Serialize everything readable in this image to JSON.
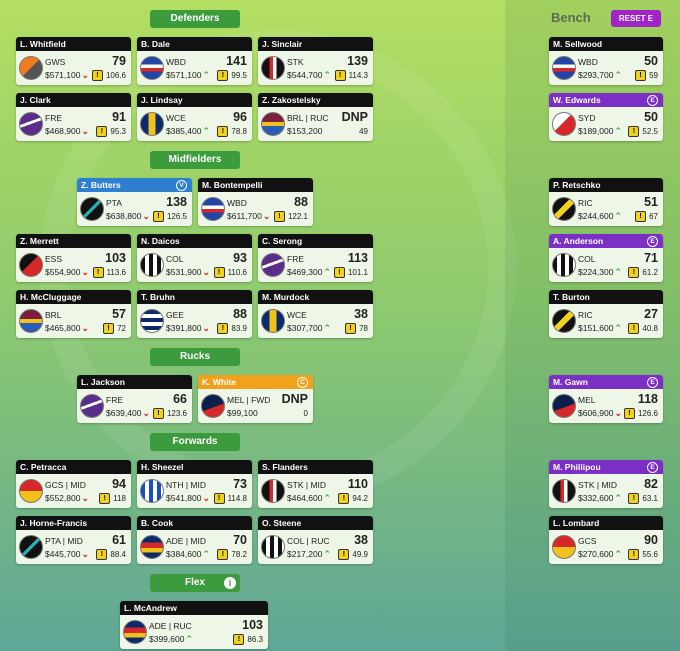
{
  "header": {
    "bench_title": "Bench",
    "reset_button": "RESET E"
  },
  "sections": [
    {
      "title": "Defenders",
      "players": [
        {
          "name": "L. Whitfield",
          "team": "GWS",
          "score": 79,
          "price": "$571,100",
          "trend": "down",
          "average": 106.6
        },
        {
          "name": "B. Dale",
          "team": "WBD",
          "score": 141,
          "price": "$571,100",
          "trend": "up",
          "average": 99.5
        },
        {
          "name": "J. Sinclair",
          "team": "STK",
          "score": 139,
          "price": "$544,700",
          "trend": "up",
          "average": 114.3
        },
        {
          "name": "J. Clark",
          "team": "FRE",
          "score": 91,
          "price": "$468,900",
          "trend": "down",
          "average": 95.3
        },
        {
          "name": "J. Lindsay",
          "team": "WCE",
          "score": 96,
          "price": "$385,400",
          "trend": "up",
          "average": 78.8
        },
        {
          "name": "Z. Zakostelsky",
          "team": "BRL | RUC",
          "score": "DNP",
          "price": "$153,200",
          "average": 49
        }
      ]
    },
    {
      "title": "Midfielders",
      "players": [
        {
          "name": "Z. Butters",
          "team": "PTA",
          "score": 138,
          "price": "$638,800",
          "trend": "down",
          "average": 126.5,
          "badge": "V",
          "header_color": "#2f7fd0"
        },
        {
          "name": "M. Bontempelli",
          "team": "WBD",
          "score": 88,
          "price": "$611,700",
          "trend": "down",
          "average": 122.1
        },
        {
          "name": "Z. Merrett",
          "team": "ESS",
          "score": 103,
          "price": "$554,900",
          "trend": "down",
          "average": 113.6
        },
        {
          "name": "N. Daicos",
          "team": "COL",
          "score": 93,
          "price": "$531,900",
          "trend": "down",
          "average": 110.6
        },
        {
          "name": "C. Serong",
          "team": "FRE",
          "score": 113,
          "price": "$469,300",
          "trend": "up",
          "average": 101.1
        },
        {
          "name": "H. McCluggage",
          "team": "BRL",
          "score": 57,
          "price": "$465,800",
          "trend": "down",
          "average": 72
        },
        {
          "name": "T. Bruhn",
          "team": "GEE",
          "score": 88,
          "price": "$391,800",
          "trend": "down",
          "average": 83.9
        },
        {
          "name": "M. Murdock",
          "team": "WCE",
          "score": 38,
          "price": "$307,700",
          "trend": "up",
          "average": 78
        }
      ]
    },
    {
      "title": "Rucks",
      "players": [
        {
          "name": "L. Jackson",
          "team": "FRE",
          "score": 66,
          "price": "$639,400",
          "trend": "down",
          "average": 123.6
        },
        {
          "name": "K. White",
          "team": "MEL | FWD",
          "score": "DNP",
          "price": "$99,100",
          "average": 0,
          "badge": "C",
          "header_color": "#f0a31a"
        }
      ]
    },
    {
      "title": "Forwards",
      "players": [
        {
          "name": "C. Petracca",
          "team": "GCS | MID",
          "score": 94,
          "price": "$552,800",
          "trend": "down",
          "average": 118
        },
        {
          "name": "H. Sheezel",
          "team": "NTH | MID",
          "score": 73,
          "price": "$541,800",
          "trend": "down",
          "average": 114.8
        },
        {
          "name": "S. Flanders",
          "team": "STK | MID",
          "score": 110,
          "price": "$464,600",
          "trend": "up",
          "average": 94.2
        },
        {
          "name": "J. Horne-Francis",
          "team": "PTA | MID",
          "score": 61,
          "price": "$445,700",
          "trend": "down",
          "average": 88.4
        },
        {
          "name": "B. Cook",
          "team": "ADE | MID",
          "score": 70,
          "price": "$384,600",
          "trend": "up",
          "average": 78.2
        },
        {
          "name": "O. Steene",
          "team": "COL | RUC",
          "score": 38,
          "price": "$217,200",
          "trend": "up",
          "average": 49.9
        }
      ]
    },
    {
      "title": "Flex",
      "players": [
        {
          "name": "L. McAndrew",
          "team": "ADE | RUC",
          "score": 103,
          "price": "$399,600",
          "trend": "up",
          "average": 86.3
        }
      ]
    }
  ],
  "bench": {
    "players": [
      {
        "name": "M. Sellwood",
        "team": "WBD",
        "score": 50,
        "price": "$293,700",
        "trend": "up",
        "average": 59
      },
      {
        "name": "W. Edwards",
        "team": "SYD",
        "score": 50,
        "price": "$189,000",
        "trend": "up",
        "average": 52.5,
        "badge": "E",
        "header_color": "#7b2fc4"
      },
      {
        "name": "P. Retschko",
        "team": "RIC",
        "score": 51,
        "price": "$244,600",
        "trend": "up",
        "average": 67
      },
      {
        "name": "A. Anderson",
        "team": "COL",
        "score": 71,
        "price": "$224,300",
        "trend": "up",
        "average": 61.2,
        "badge": "E",
        "header_color": "#7b2fc4"
      },
      {
        "name": "T. Burton",
        "team": "RIC",
        "score": 27,
        "price": "$151,600",
        "trend": "up",
        "average": 40.8
      },
      {
        "name": "M. Gawn",
        "team": "MEL",
        "score": 118,
        "price": "$606,900",
        "trend": "down",
        "average": 126.6,
        "badge": "E",
        "header_color": "#7b2fc4"
      },
      {
        "name": "M. Phillipou",
        "team": "STK | MID",
        "score": 82,
        "price": "$332,600",
        "trend": "up",
        "average": 63.1,
        "badge": "E",
        "header_color": "#7b2fc4"
      },
      {
        "name": "L. Lombard",
        "team": "GCS",
        "score": 90,
        "price": "$270,600",
        "trend": "up",
        "average": 55.6
      }
    ]
  }
}
